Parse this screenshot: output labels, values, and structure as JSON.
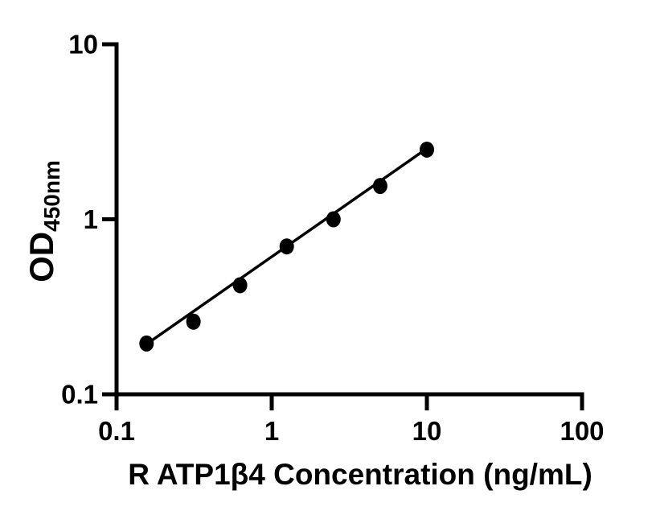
{
  "figure": {
    "background": "#ffffff",
    "foreground": "#000000"
  },
  "chart_data": {
    "type": "scatter",
    "title": "",
    "xlabel": "R ATP1β4 Concentration (ng/mL)",
    "ylabel_main": "OD",
    "ylabel_sub": "450nm",
    "x_scale": "log",
    "y_scale": "log",
    "xlim": [
      0.1,
      100
    ],
    "ylim": [
      0.1,
      10
    ],
    "x_ticks": [
      "0.1",
      "1",
      "10",
      "100"
    ],
    "y_ticks": [
      "0.1",
      "1",
      "10"
    ],
    "grid": false,
    "legend": "none",
    "series": [
      {
        "marker": "filled-circle",
        "marker_color": "#000000",
        "x": [
          0.156,
          0.313,
          0.625,
          1.25,
          2.5,
          5,
          10
        ],
        "y": [
          0.195,
          0.26,
          0.42,
          0.7,
          1.0,
          1.55,
          2.5
        ]
      }
    ],
    "fit_line": {
      "color": "#000000",
      "x": [
        0.145,
        10.4
      ],
      "y": [
        0.185,
        2.6
      ]
    }
  }
}
